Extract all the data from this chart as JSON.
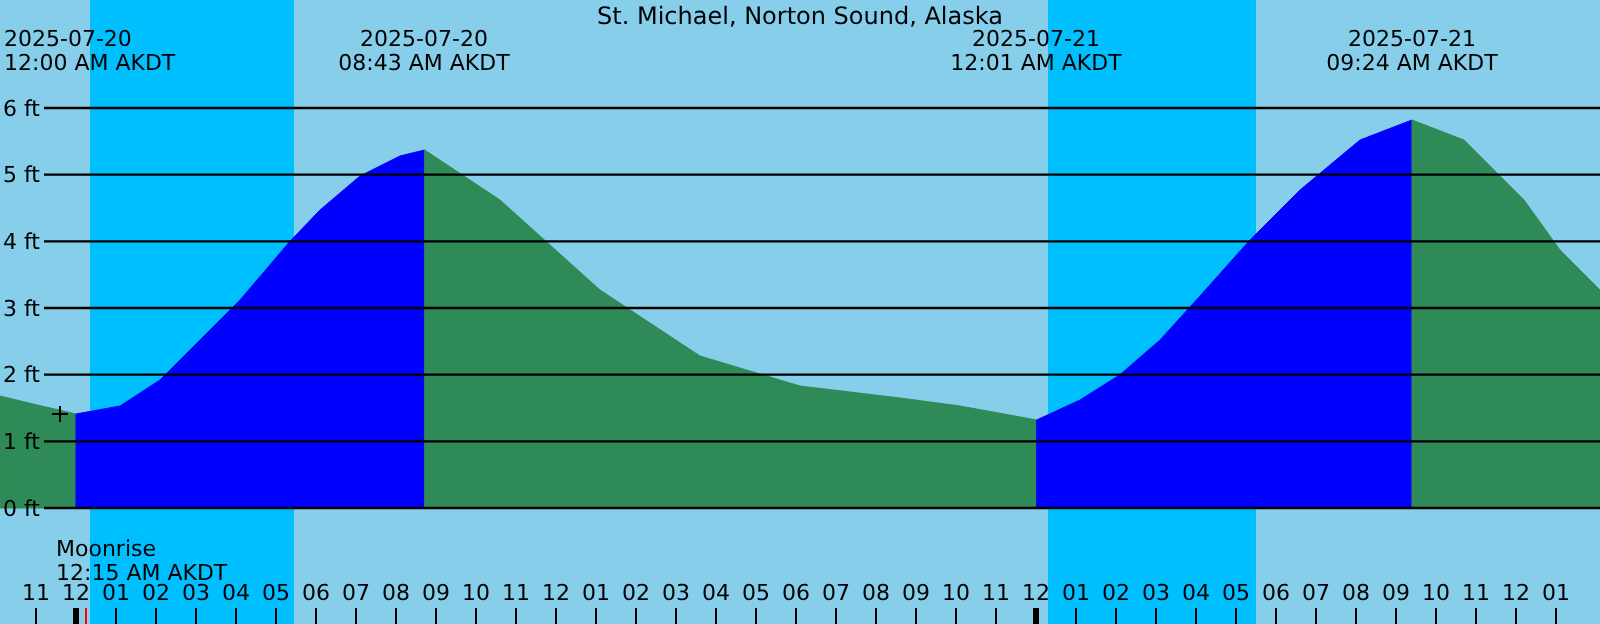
{
  "chart_data": {
    "type": "area",
    "title": "St. Michael, Norton Sound, Alaska",
    "xlim": [
      "2025-07-19T22:06",
      "2025-07-21T14:06"
    ],
    "ylim": [
      -1.74,
      7.62
    ],
    "xticks": [
      {
        "value": "2025-07-19T23:00",
        "label": "11"
      },
      {
        "value": "2025-07-20T00:00",
        "label": "12"
      },
      {
        "value": "2025-07-20T01:00",
        "label": "01"
      },
      {
        "value": "2025-07-20T02:00",
        "label": "02"
      },
      {
        "value": "2025-07-20T03:00",
        "label": "03"
      },
      {
        "value": "2025-07-20T04:00",
        "label": "04"
      },
      {
        "value": "2025-07-20T05:00",
        "label": "05"
      },
      {
        "value": "2025-07-20T06:00",
        "label": "06"
      },
      {
        "value": "2025-07-20T07:00",
        "label": "07"
      },
      {
        "value": "2025-07-20T08:00",
        "label": "08"
      },
      {
        "value": "2025-07-20T09:00",
        "label": "09"
      },
      {
        "value": "2025-07-20T10:00",
        "label": "10"
      },
      {
        "value": "2025-07-20T11:00",
        "label": "11"
      },
      {
        "value": "2025-07-20T12:00",
        "label": "12"
      },
      {
        "value": "2025-07-20T13:00",
        "label": "01"
      },
      {
        "value": "2025-07-20T14:00",
        "label": "02"
      },
      {
        "value": "2025-07-20T15:00",
        "label": "03"
      },
      {
        "value": "2025-07-20T16:00",
        "label": "04"
      },
      {
        "value": "2025-07-20T17:00",
        "label": "05"
      },
      {
        "value": "2025-07-20T18:00",
        "label": "06"
      },
      {
        "value": "2025-07-20T19:00",
        "label": "07"
      },
      {
        "value": "2025-07-20T20:00",
        "label": "08"
      },
      {
        "value": "2025-07-20T21:00",
        "label": "09"
      },
      {
        "value": "2025-07-20T22:00",
        "label": "10"
      },
      {
        "value": "2025-07-20T23:00",
        "label": "11"
      },
      {
        "value": "2025-07-21T00:00",
        "label": "12"
      },
      {
        "value": "2025-07-21T01:00",
        "label": "01"
      },
      {
        "value": "2025-07-21T02:00",
        "label": "02"
      },
      {
        "value": "2025-07-21T03:00",
        "label": "03"
      },
      {
        "value": "2025-07-21T04:00",
        "label": "04"
      },
      {
        "value": "2025-07-21T05:00",
        "label": "05"
      },
      {
        "value": "2025-07-21T06:00",
        "label": "06"
      },
      {
        "value": "2025-07-21T07:00",
        "label": "07"
      },
      {
        "value": "2025-07-21T08:00",
        "label": "08"
      },
      {
        "value": "2025-07-21T09:00",
        "label": "09"
      },
      {
        "value": "2025-07-21T10:00",
        "label": "10"
      },
      {
        "value": "2025-07-21T11:00",
        "label": "11"
      },
      {
        "value": "2025-07-21T12:00",
        "label": "12"
      },
      {
        "value": "2025-07-21T13:00",
        "label": "01"
      }
    ],
    "yticks": [
      {
        "value": 0,
        "label": "0 ft"
      },
      {
        "value": 1,
        "label": "1 ft"
      },
      {
        "value": 2,
        "label": "2 ft"
      },
      {
        "value": 3,
        "label": "3 ft"
      },
      {
        "value": 4,
        "label": "4 ft"
      },
      {
        "value": 5,
        "label": "5 ft"
      },
      {
        "value": 6,
        "label": "6 ft"
      }
    ],
    "grid": "y",
    "bands": [
      {
        "axis": "x",
        "from": "2025-07-20T00:21",
        "to": "2025-07-20T05:27",
        "color": "#00bfff"
      },
      {
        "axis": "x",
        "from": "2025-07-21T00:18",
        "to": "2025-07-21T05:30",
        "color": "#00bfff"
      }
    ],
    "series": [
      {
        "color": "#2e8b57",
        "x": [
          "2025-07-19T22:06",
          "2025-07-19T23:00",
          "2025-07-20T00:00"
        ],
        "values": [
          1.68,
          1.55,
          1.41
        ]
      },
      {
        "color": "#0000ff",
        "x": [
          "2025-07-20T00:00",
          "2025-07-20T01:06",
          "2025-07-20T02:06",
          "2025-07-20T03:06",
          "2025-07-20T04:06",
          "2025-07-20T05:21",
          "2025-07-20T06:06",
          "2025-07-20T07:06",
          "2025-07-20T08:06",
          "2025-07-20T08:43"
        ],
        "values": [
          1.41,
          1.53,
          1.92,
          2.52,
          3.12,
          4.0,
          4.47,
          4.98,
          5.28,
          5.37
        ]
      },
      {
        "color": "#2e8b57",
        "x": [
          "2025-07-20T08:43",
          "2025-07-20T10:36",
          "2025-07-20T13:06",
          "2025-07-20T15:36",
          "2025-07-20T18:06",
          "2025-07-20T20:36",
          "2025-07-20T22:06",
          "2025-07-21T00:01"
        ],
        "values": [
          5.37,
          4.62,
          3.27,
          2.28,
          1.83,
          1.65,
          1.53,
          1.32
        ]
      },
      {
        "color": "#0000ff",
        "x": [
          "2025-07-21T00:01",
          "2025-07-21T01:06",
          "2025-07-21T02:06",
          "2025-07-21T03:06",
          "2025-07-21T04:06",
          "2025-07-21T05:21",
          "2025-07-21T06:36",
          "2025-07-21T08:06",
          "2025-07-21T09:24"
        ],
        "values": [
          1.32,
          1.62,
          2.0,
          2.52,
          3.18,
          4.02,
          4.77,
          5.52,
          5.82
        ]
      },
      {
        "color": "#2e8b57",
        "x": [
          "2025-07-21T09:24",
          "2025-07-21T10:42",
          "2025-07-21T12:12",
          "2025-07-21T13:06",
          "2025-07-21T14:06"
        ],
        "values": [
          5.82,
          5.52,
          4.62,
          3.87,
          3.27
        ]
      }
    ],
    "annotations": [
      "2025-07-20\n12:00 AM AKDT",
      "2025-07-20\n08:43 AM AKDT",
      "2025-07-21\n12:01 AM AKDT",
      "2025-07-21\n09:24 AM AKDT",
      "Moonrise\n12:15 AM AKDT"
    ]
  }
}
